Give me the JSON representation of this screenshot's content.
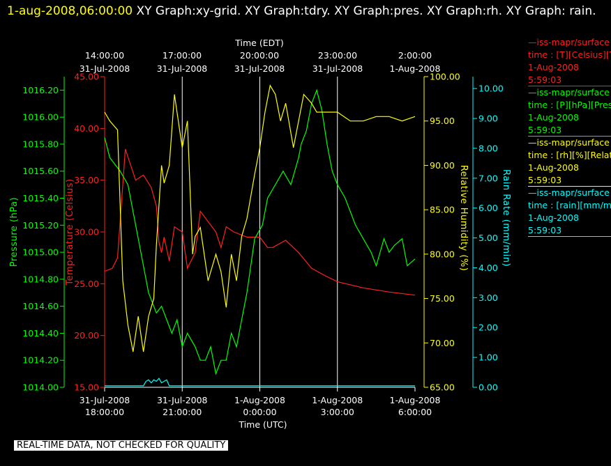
{
  "header": {
    "timestamp": "1-aug-2008,06:00:00",
    "titles": "XY Graph:xy-grid.  XY Graph:tdry.  XY Graph:pres.  XY Graph:rh.  XY Graph: rain."
  },
  "colors": {
    "background": "#000000",
    "temperature": "#ff2020",
    "pressure": "#00ff00",
    "humidity": "#ffff00",
    "rain": "#00ffff",
    "grid": "#ffffff"
  },
  "legend": [
    {
      "source": "iss-mapr/surface",
      "line2": "time : [T][Celsius][T",
      "date": "1-Aug-2008",
      "time": "5:59:03",
      "color": "#ff2020"
    },
    {
      "source": "iss-mapr/surface",
      "line2": "time : [P][hPa][Pres",
      "date": "1-Aug-2008",
      "time": "5:59:03",
      "color": "#00ff00"
    },
    {
      "source": "iss-mapr/surface",
      "line2": "time : [rh][%][Relati",
      "date": "1-Aug-2008",
      "time": "5:59:03",
      "color": "#ffff00"
    },
    {
      "source": "iss-mapr/surface",
      "line2": "time : [rain][mm/min",
      "date": "1-Aug-2008",
      "time": "5:59:03",
      "color": "#00ffff"
    }
  ],
  "footer": "REAL-TIME DATA, NOT CHECKED FOR QUALITY",
  "chart_data": {
    "type": "line",
    "x_top_label": "Time (EDT)",
    "x_bottom_label": "Time (UTC)",
    "x_ticks_top": [
      [
        "14:00:00",
        "31-Jul-2008"
      ],
      [
        "17:00:00",
        "31-Jul-2008"
      ],
      [
        "20:00:00",
        "31-Jul-2008"
      ],
      [
        "23:00:00",
        "31-Jul-2008"
      ],
      [
        "2:00:00",
        "1-Aug-2008"
      ]
    ],
    "x_ticks_bottom": [
      [
        "31-Jul-2008",
        "18:00:00"
      ],
      [
        "31-Jul-2008",
        "21:00:00"
      ],
      [
        "1-Aug-2008",
        "0:00:00"
      ],
      [
        "1-Aug-2008",
        "3:00:00"
      ],
      [
        "1-Aug-2008",
        "6:00:00"
      ]
    ],
    "x_range_hours": [
      0,
      12
    ],
    "axes": {
      "pressure": {
        "label": "Pressure (hPa)",
        "range": [
          1014.0,
          1016.3
        ],
        "ticks": [
          "1014.00",
          "1014.20",
          "1014.40",
          "1014.60",
          "1014.80",
          "1015.00",
          "1015.20",
          "1015.40",
          "1015.60",
          "1015.80",
          "1016.00",
          "1016.20"
        ]
      },
      "temperature": {
        "label": "Temperature (Celsius)",
        "range": [
          15,
          45
        ],
        "ticks": [
          "15.00",
          "20.00",
          "25.00",
          "30.00",
          "35.00",
          "40.00",
          "45.00"
        ]
      },
      "humidity": {
        "label": "Relative Humidity (%)",
        "range": [
          65,
          100
        ],
        "ticks": [
          "65.00",
          "70.00",
          "75.00",
          "80.00",
          "85.00",
          "90.00",
          "95.00",
          "100.00"
        ]
      },
      "rain": {
        "label": "Rain Rate (mm/min)",
        "range": [
          0,
          10.4
        ],
        "ticks": [
          "0.00",
          "1.00",
          "2.00",
          "3.00",
          "4.00",
          "5.00",
          "6.00",
          "7.00",
          "8.00",
          "9.00",
          "10.00"
        ]
      }
    },
    "series": [
      {
        "key": "temperature",
        "x": [
          0,
          0.3,
          0.5,
          0.8,
          1.0,
          1.2,
          1.5,
          1.8,
          2.0,
          2.1,
          2.2,
          2.3,
          2.5,
          2.7,
          3.0,
          3.2,
          3.4,
          3.5,
          3.7,
          4.0,
          4.3,
          4.5,
          4.7,
          5.0,
          5.5,
          6.0,
          6.3,
          6.5,
          7.0,
          7.5,
          8.0,
          8.5,
          9.0,
          10.0,
          11.0,
          12.0
        ],
        "values": [
          26.2,
          26.5,
          27.5,
          38,
          36.5,
          35,
          35.5,
          34.3,
          32.5,
          29,
          28,
          29.5,
          27.2,
          30.5,
          30,
          26.5,
          27.5,
          28,
          32,
          31,
          30,
          28.5,
          30.5,
          30,
          29.5,
          29.5,
          28.5,
          28.5,
          29.2,
          28,
          26.5,
          25.8,
          25.2,
          24.6,
          24.2,
          23.9
        ]
      },
      {
        "key": "pressure",
        "x": [
          0,
          0.2,
          0.4,
          0.6,
          0.9,
          1.1,
          1.3,
          1.5,
          1.7,
          2.0,
          2.2,
          2.4,
          2.6,
          2.8,
          3.0,
          3.2,
          3.5,
          3.7,
          3.9,
          4.1,
          4.3,
          4.5,
          4.7,
          4.9,
          5.1,
          5.3,
          5.5,
          5.8,
          6.1,
          6.3,
          6.6,
          6.9,
          7.2,
          7.5,
          7.6,
          7.8,
          8.0,
          8.2,
          8.4,
          8.6,
          8.8,
          9.0,
          9.3,
          9.5,
          9.7,
          10.0,
          10.3,
          10.5,
          10.8,
          11.0,
          11.2,
          11.5,
          11.7,
          12.0
        ],
        "values": [
          1015.85,
          1015.7,
          1015.65,
          1015.6,
          1015.5,
          1015.3,
          1015.1,
          1014.9,
          1014.7,
          1014.55,
          1014.6,
          1014.5,
          1014.4,
          1014.5,
          1014.3,
          1014.4,
          1014.3,
          1014.2,
          1014.2,
          1014.3,
          1014.1,
          1014.2,
          1014.2,
          1014.4,
          1014.3,
          1014.5,
          1014.7,
          1015.1,
          1015.2,
          1015.4,
          1015.5,
          1015.6,
          1015.5,
          1015.7,
          1015.8,
          1015.9,
          1016.1,
          1016.2,
          1016.05,
          1015.8,
          1015.6,
          1015.5,
          1015.4,
          1015.3,
          1015.2,
          1015.1,
          1015.0,
          1014.9,
          1015.1,
          1015.0,
          1015.05,
          1015.1,
          1014.9,
          1014.95
        ]
      },
      {
        "key": "humidity",
        "x": [
          0,
          0.2,
          0.5,
          0.7,
          0.9,
          1.1,
          1.3,
          1.5,
          1.7,
          1.9,
          2.0,
          2.2,
          2.3,
          2.5,
          2.7,
          2.9,
          3.0,
          3.2,
          3.4,
          3.5,
          3.7,
          4.0,
          4.3,
          4.5,
          4.7,
          4.9,
          5.1,
          5.3,
          5.5,
          5.8,
          6.0,
          6.2,
          6.4,
          6.6,
          6.8,
          7.0,
          7.3,
          7.5,
          7.7,
          8.0,
          8.2,
          8.4,
          8.6,
          8.8,
          9.0,
          9.5,
          10.0,
          10.5,
          11.0,
          11.5,
          12.0
        ],
        "values": [
          96,
          95,
          94,
          77,
          72,
          69,
          73,
          69,
          73,
          75,
          81,
          90,
          88,
          90,
          98,
          94,
          92,
          95,
          80,
          82,
          83,
          77,
          80,
          78,
          74,
          80,
          77,
          82,
          84,
          89,
          92,
          96,
          99,
          98,
          95,
          97,
          92,
          95,
          98,
          97,
          96,
          96,
          96,
          96,
          96,
          95,
          95,
          95.5,
          95.5,
          95,
          95.5
        ]
      },
      {
        "key": "rain",
        "x": [
          0,
          1.5,
          1.6,
          1.7,
          1.8,
          1.9,
          2.0,
          2.1,
          2.2,
          2.3,
          2.4,
          2.5,
          2.6,
          12.0
        ],
        "values": [
          0.05,
          0.05,
          0.2,
          0.25,
          0.15,
          0.25,
          0.2,
          0.3,
          0.15,
          0.2,
          0.25,
          0.05,
          0.05,
          0.05
        ]
      }
    ]
  }
}
